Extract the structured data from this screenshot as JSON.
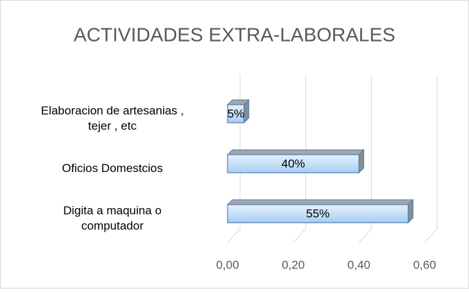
{
  "chart_data": {
    "type": "bar3d_horizontal",
    "title": "ACTIVIDADES EXTRA-LABORALES",
    "categories": [
      "Elaboracion de artesanias , tejer , etc",
      "Oficios Domestcios",
      "Digita a maquina o computador"
    ],
    "values": [
      0.05,
      0.4,
      0.55
    ],
    "value_labels": [
      "5%",
      "40%",
      "55%"
    ],
    "color": "#c6e0f8",
    "xlim": [
      0,
      0.6
    ],
    "xticks": [
      {
        "value": 0,
        "label": "0,00"
      },
      {
        "value": 0.2,
        "label": "0,20"
      },
      {
        "value": 0.4,
        "label": "0,40"
      },
      {
        "value": 0.6,
        "label": "0,60"
      }
    ],
    "grid": true
  }
}
